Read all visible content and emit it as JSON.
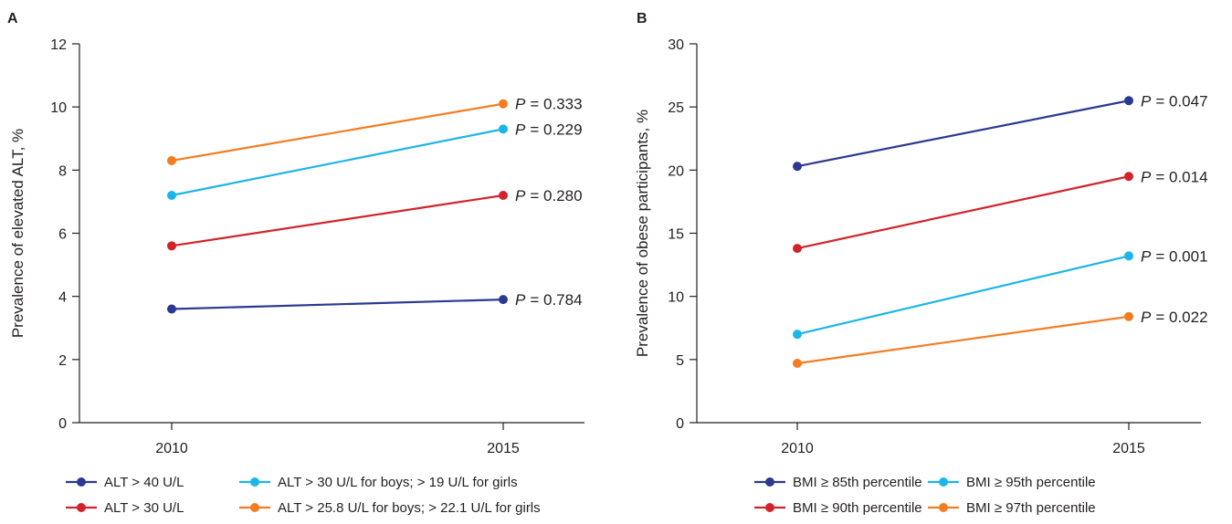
{
  "colors": {
    "navy": "#2b3990",
    "cyan": "#1cb5e8",
    "red": "#d2232a",
    "orange": "#f47c20",
    "axis": "#231f20"
  },
  "chart_data": [
    {
      "type": "line",
      "panel": "A",
      "categories": [
        "2010",
        "2015"
      ],
      "ylabel": "Prevalence of elevated ALT, %",
      "xlabel": "",
      "ylim": [
        0,
        12
      ],
      "yticks": [
        0,
        2,
        4,
        6,
        8,
        10,
        12
      ],
      "grid": false,
      "legend_position": "bottom",
      "series": [
        {
          "name": "ALT > 40 U/L",
          "values": [
            3.6,
            3.9
          ],
          "color": "#2b3990",
          "p_prefix": "P",
          "p_value": "= 0.784"
        },
        {
          "name": "ALT > 30 U/L for boys; > 19 U/L for girls",
          "values": [
            7.2,
            9.3
          ],
          "color": "#1cb5e8",
          "p_prefix": "P",
          "p_value": "= 0.229"
        },
        {
          "name": "ALT > 30 U/L",
          "values": [
            5.6,
            7.2
          ],
          "color": "#d2232a",
          "p_prefix": "P",
          "p_value": "= 0.280"
        },
        {
          "name": "ALT > 25.8 U/L for boys; > 22.1 U/L for girls",
          "values": [
            8.3,
            10.1
          ],
          "color": "#f47c20",
          "p_prefix": "P",
          "p_value": "= 0.333"
        }
      ]
    },
    {
      "type": "line",
      "panel": "B",
      "categories": [
        "2010",
        "2015"
      ],
      "ylabel": "Prevalence of obese participants, %",
      "xlabel": "",
      "ylim": [
        0,
        30
      ],
      "yticks": [
        0,
        5,
        10,
        15,
        20,
        25,
        30
      ],
      "grid": false,
      "legend_position": "bottom",
      "series": [
        {
          "name": "BMI ≥ 85th percentile",
          "values": [
            20.3,
            25.5
          ],
          "color": "#2b3990",
          "p_prefix": "P",
          "p_value": "= 0.047"
        },
        {
          "name": "BMI ≥ 95th percentile",
          "values": [
            7.0,
            13.2
          ],
          "color": "#1cb5e8",
          "p_prefix": "P",
          "p_value": "= 0.001"
        },
        {
          "name": "BMI ≥ 90th percentile",
          "values": [
            13.8,
            19.5
          ],
          "color": "#d2232a",
          "p_prefix": "P",
          "p_value": "= 0.014"
        },
        {
          "name": "BMI ≥ 97th percentile",
          "values": [
            4.7,
            8.4
          ],
          "color": "#f47c20",
          "p_prefix": "P",
          "p_value": "= 0.022"
        }
      ]
    }
  ]
}
